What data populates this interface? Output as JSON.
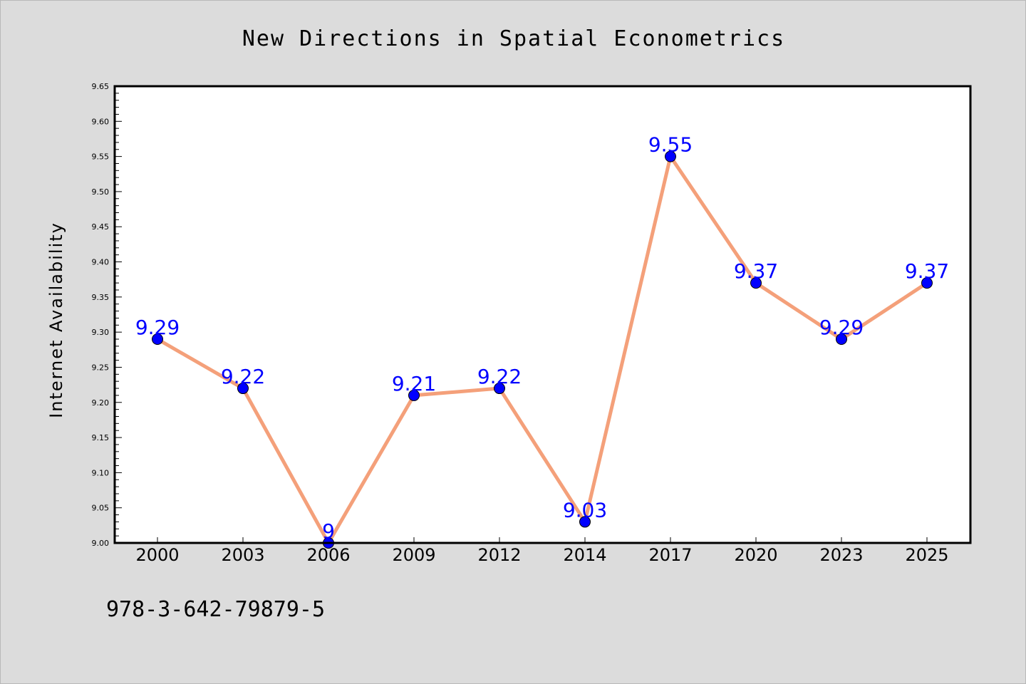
{
  "chart_data": {
    "type": "line",
    "title": "New Directions in Spatial Econometrics",
    "ylabel": "Internet Availability",
    "xlabel": "",
    "categories": [
      "2000",
      "2003",
      "2006",
      "2009",
      "2012",
      "2014",
      "2017",
      "2020",
      "2023",
      "2025"
    ],
    "series": [
      {
        "values": [
          9.29,
          9.22,
          9.0,
          9.21,
          9.22,
          9.03,
          9.55,
          9.37,
          9.29,
          9.37
        ],
        "data_labels": [
          "9.29",
          "9.22",
          "9",
          "9.21",
          "9.22",
          "9.03",
          "9.55",
          "9.37",
          "9.29",
          "9.37"
        ],
        "line_color": "#f4a07a",
        "marker_color": "#0000ff",
        "label_color": "#0000ff"
      }
    ],
    "ylim": [
      9.0,
      9.65
    ],
    "yticks": [
      "9.00",
      "9.05",
      "9.10",
      "9.15",
      "9.20",
      "9.25",
      "9.30",
      "9.35",
      "9.40",
      "9.45",
      "9.50",
      "9.55",
      "9.60",
      "9.65"
    ],
    "grid": false,
    "legend": "none"
  },
  "footer_text": "978-3-642-79879-5",
  "colors": {
    "background": "#dcdcdc",
    "plot_background": "#ffffff",
    "axes": "#000000",
    "text": "#000000"
  }
}
